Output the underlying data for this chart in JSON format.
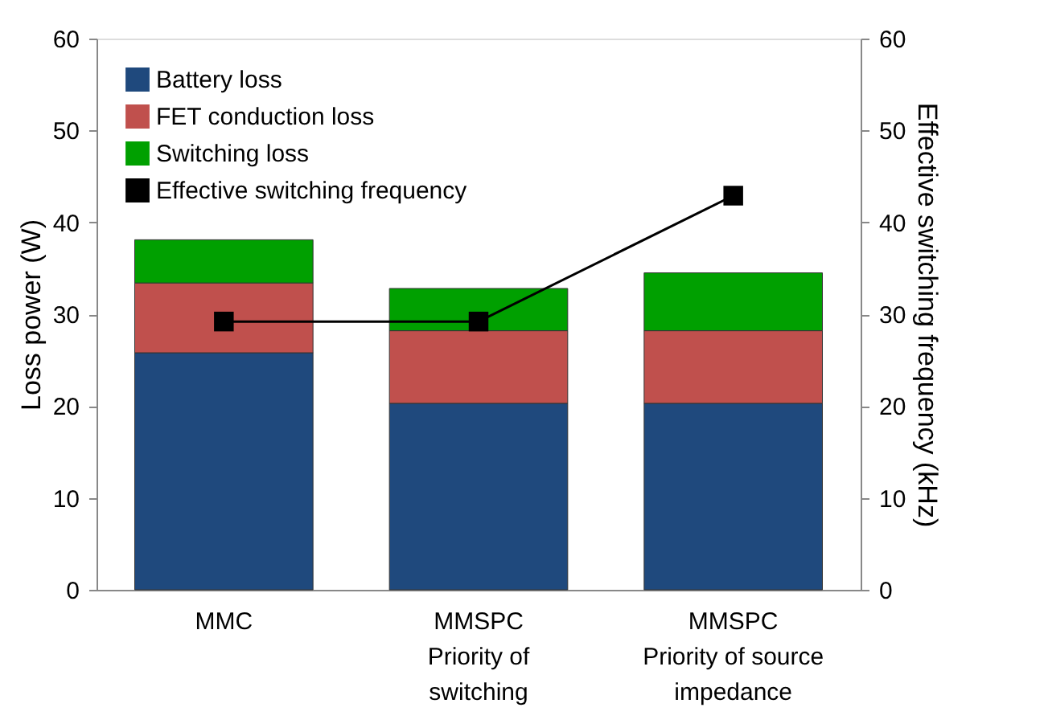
{
  "chart_data": {
    "type": "bar",
    "stacked": true,
    "categories": [
      "MMC",
      "MMSPC\nPriority of\nswitching",
      "MMSPC\nPriority of source\nimpedance"
    ],
    "series": [
      {
        "name": "Battery loss",
        "color": "#1f497d",
        "values": [
          25.8,
          20.3,
          20.3
        ]
      },
      {
        "name": "FET conduction loss",
        "color": "#c0504d",
        "values": [
          7.6,
          7.9,
          7.9
        ]
      },
      {
        "name": "Switching loss",
        "color": "#00a000",
        "values": [
          4.7,
          4.6,
          6.3
        ]
      },
      {
        "name": "Effective switching frequency",
        "color": "#000000",
        "type": "line",
        "axis": "y2",
        "marker": "square",
        "values": [
          29.2,
          29.2,
          42.9
        ]
      }
    ],
    "ylabel": "Loss power (W)",
    "y2label": "Effective switching frequency (kHz)",
    "ylim": [
      0,
      60
    ],
    "yticks": [
      0,
      10,
      20,
      30,
      40,
      50,
      60
    ],
    "y2lim": [
      0,
      60
    ],
    "y2ticks": [
      0,
      10,
      20,
      30,
      40,
      50,
      60
    ],
    "grid": false,
    "legend": "top left"
  }
}
